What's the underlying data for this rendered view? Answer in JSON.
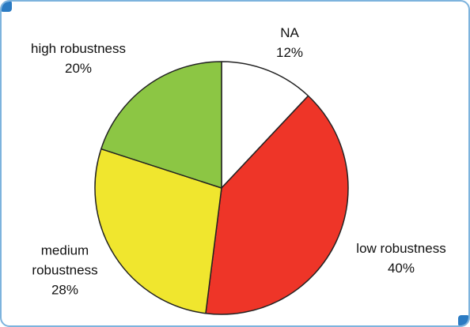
{
  "chart_data": {
    "type": "pie",
    "title": "",
    "slices": [
      {
        "label": "NA",
        "value": 12,
        "percent_label": "12%",
        "color": "#ffffff"
      },
      {
        "label": "low robustness",
        "value": 40,
        "percent_label": "40%",
        "color": "#ee3528"
      },
      {
        "label": "medium robustness",
        "value": 28,
        "percent_label": "28%",
        "color": "#f0e62e"
      },
      {
        "label": "high robustness",
        "value": 20,
        "percent_label": "20%",
        "color": "#8cc644"
      }
    ],
    "label_lines": [
      [
        "NA",
        "12%"
      ],
      [
        "low robustness",
        "40%"
      ],
      [
        "medium",
        "robustness",
        "28%"
      ],
      [
        "high robustness",
        "20%"
      ]
    ],
    "colors": {
      "frame_border": "#7db3dd",
      "corner_accent": "#2b7bc3",
      "slice_outline": "#222222"
    }
  }
}
